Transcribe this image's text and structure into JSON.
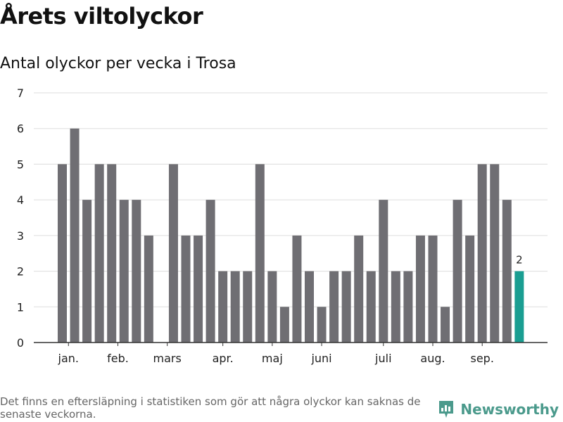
{
  "header": {
    "title": "Årets viltolyckor",
    "subtitle": "Antal olyckor per vecka i Trosa"
  },
  "footer": {
    "note": "Det finns en eftersläpning i statistiken som gör att några olyckor kan saknas de senaste veckorna.",
    "brand": "Newsworthy"
  },
  "colors": {
    "bar": "#6f6e73",
    "highlight": "#1a9e92",
    "grid": "#dddddd",
    "axis": "#333333",
    "brand": "#4b9a8c"
  },
  "chart_data": {
    "type": "bar",
    "title": "Antal olyckor per vecka i Trosa",
    "ylim": [
      0,
      7
    ],
    "yticks": [
      0,
      1,
      2,
      3,
      4,
      5,
      6,
      7
    ],
    "grid": true,
    "x": [
      1,
      2,
      3,
      4,
      5,
      6,
      7,
      8,
      9,
      10,
      11,
      12,
      13,
      14,
      15,
      16,
      17,
      18,
      19,
      20,
      21,
      22,
      23,
      24,
      25,
      26,
      27,
      28,
      29,
      30,
      31,
      32,
      33,
      34,
      35,
      36,
      37,
      38
    ],
    "values": [
      5,
      6,
      4,
      5,
      5,
      4,
      4,
      3,
      0,
      5,
      3,
      3,
      4,
      2,
      2,
      2,
      5,
      2,
      1,
      3,
      2,
      1,
      2,
      2,
      3,
      2,
      4,
      2,
      2,
      3,
      3,
      1,
      4,
      3,
      5,
      5,
      4,
      2
    ],
    "highlight_last": true,
    "data_labels": [
      {
        "index": 37,
        "label": "2"
      }
    ],
    "month_ticks": [
      {
        "label": "jan.",
        "position": 1.5
      },
      {
        "label": "feb.",
        "position": 5.5
      },
      {
        "label": "mars",
        "position": 9.5
      },
      {
        "label": "apr.",
        "position": 14
      },
      {
        "label": "maj",
        "position": 18
      },
      {
        "label": "juni",
        "position": 22
      },
      {
        "label": "juli",
        "position": 27
      },
      {
        "label": "aug.",
        "position": 31
      },
      {
        "label": "sep.",
        "position": 35
      }
    ]
  }
}
